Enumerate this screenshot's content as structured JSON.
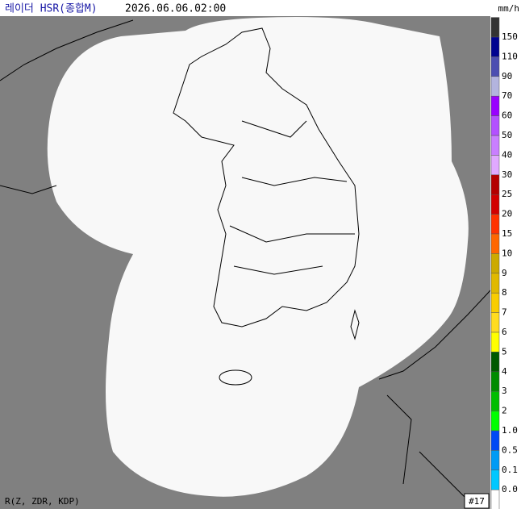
{
  "header": {
    "title": "레이더 HSR(종합M)",
    "time": "2026.06.06.02:00"
  },
  "legend": {
    "unit": "mm/h",
    "labels": [
      "150",
      "110",
      "90",
      "70",
      "60",
      "50",
      "40",
      "30",
      "25",
      "20",
      "15",
      "10",
      "9",
      "8",
      "7",
      "6",
      "5",
      "4",
      "3",
      "2",
      "1.0",
      "0.5",
      "0.1",
      "0.0"
    ],
    "colors": [
      "#333333",
      "#000390",
      "#4c4eb1",
      "#b3b4de",
      "#9900ff",
      "#b350ff",
      "#c97fff",
      "#e0a9ff",
      "#b40000",
      "#d20000",
      "#ff3200",
      "#ff6600",
      "#ccaa00",
      "#e0b900",
      "#f9cd00",
      "#ffdc1f",
      "#ffff00",
      "#005a00",
      "#008c00",
      "#00be00",
      "#00ff00",
      "#0049f5",
      "#009bf5",
      "#00c8ff",
      "#ffffff"
    ]
  },
  "footer": {
    "method": "R(Z, ZDR, KDP)",
    "count": "#17"
  }
}
